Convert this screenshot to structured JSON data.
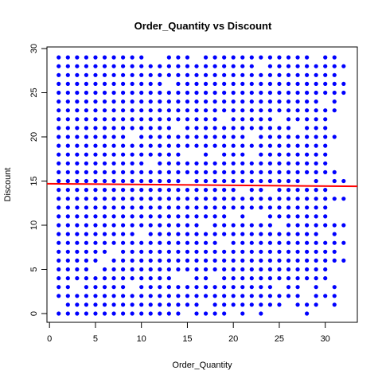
{
  "chart_data": {
    "type": "scatter",
    "title": "Order_Quantity vs Discount",
    "xlabel": "Order_Quantity",
    "ylabel": "Discount",
    "xlim": [
      0,
      33
    ],
    "ylim": [
      0,
      30
    ],
    "xticks": [
      0,
      5,
      10,
      15,
      20,
      25,
      30
    ],
    "yticks": [
      0,
      5,
      10,
      15,
      20,
      25,
      30
    ],
    "grid": false,
    "point_color": "#0000ff",
    "x_range": [
      1,
      32
    ],
    "y_range": [
      0,
      29
    ],
    "missing_points": [
      [
        1,
        1
      ],
      [
        3,
        3
      ],
      [
        5,
        5
      ],
      [
        6,
        6
      ],
      [
        7,
        7
      ],
      [
        9,
        3
      ],
      [
        9,
        20
      ],
      [
        10,
        9
      ],
      [
        11,
        17
      ],
      [
        11,
        29
      ],
      [
        12,
        29
      ],
      [
        13,
        26
      ],
      [
        14,
        4
      ],
      [
        14,
        21
      ],
      [
        15,
        0
      ],
      [
        15,
        4
      ],
      [
        15,
        15
      ],
      [
        15,
        18
      ],
      [
        16,
        18
      ],
      [
        16,
        29
      ],
      [
        17,
        1
      ],
      [
        17,
        10
      ],
      [
        18,
        4
      ],
      [
        18,
        18
      ],
      [
        19,
        8
      ],
      [
        19,
        22
      ],
      [
        20,
        0
      ],
      [
        20,
        11
      ],
      [
        21,
        14
      ],
      [
        22,
        0
      ],
      [
        22,
        11
      ],
      [
        22,
        18
      ],
      [
        22,
        20
      ],
      [
        23,
        11
      ],
      [
        23,
        28
      ],
      [
        24,
        0
      ],
      [
        24,
        14
      ],
      [
        25,
        0
      ],
      [
        25,
        3
      ],
      [
        25,
        10
      ],
      [
        25,
        22
      ],
      [
        26,
        0
      ],
      [
        26,
        1
      ],
      [
        27,
        0
      ],
      [
        27,
        21
      ],
      [
        28,
        2
      ],
      [
        28,
        3
      ],
      [
        28,
        15
      ],
      [
        29,
        0
      ],
      [
        29,
        29
      ],
      [
        30,
        0
      ],
      [
        30,
        1
      ],
      [
        30,
        3
      ],
      [
        30,
        9
      ],
      [
        30,
        15
      ],
      [
        30,
        24
      ]
    ],
    "x31_values": [
      1,
      2,
      3,
      6,
      7,
      8,
      9,
      10,
      13,
      15,
      16,
      20,
      23,
      24,
      25,
      26,
      27,
      28,
      29
    ],
    "x32_values": [
      6,
      8,
      10,
      13,
      15,
      25,
      26,
      28
    ],
    "regression_line": {
      "color": "#ff0000",
      "start": [
        0,
        14.7
      ],
      "end": [
        33,
        14.4
      ]
    }
  }
}
